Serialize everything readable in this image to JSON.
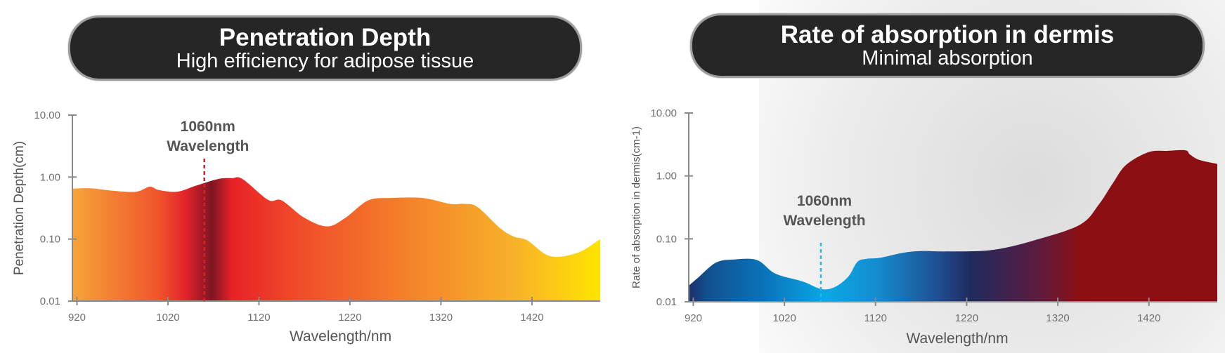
{
  "panels": [
    {
      "title": "Penetration Depth",
      "subtitle": "High efficiency for adipose tissue"
    },
    {
      "title": "Rate of absorption in dermis",
      "subtitle": "Minimal absorption"
    }
  ],
  "chart_data": [
    {
      "type": "area",
      "title": "Penetration Depth",
      "subtitle": "High efficiency for adipose tissue",
      "xlabel": "Wavelength/nm",
      "ylabel": "Penetration Depth(cm)",
      "yscale": "log",
      "xlim": [
        915,
        1495
      ],
      "ylim": [
        0.01,
        10
      ],
      "xticks": [
        920,
        1020,
        1120,
        1220,
        1320,
        1420
      ],
      "xtick_labels": [
        "920",
        "1020",
        "1120",
        "1220",
        "1320",
        "1420"
      ],
      "yticks": [
        0.01,
        0.1,
        1,
        10
      ],
      "ytick_labels": [
        "0.01",
        "0.10",
        "1.00",
        "10.00"
      ],
      "grid": false,
      "annotation": {
        "x": 1060,
        "line1": "1060nm",
        "line2": "Wavelength",
        "line_color": "#d42127"
      },
      "gradient": [
        {
          "x": 915,
          "color": "#f6a43a"
        },
        {
          "x": 1010,
          "color": "#f0542c"
        },
        {
          "x": 1040,
          "color": "#e3222a"
        },
        {
          "x": 1068,
          "color": "#7b1622"
        },
        {
          "x": 1090,
          "color": "#e82127"
        },
        {
          "x": 1160,
          "color": "#f04a2a"
        },
        {
          "x": 1280,
          "color": "#f4802a"
        },
        {
          "x": 1400,
          "color": "#f8b12a"
        },
        {
          "x": 1495,
          "color": "#ffe400"
        }
      ],
      "x": [
        915,
        935,
        960,
        985,
        1000,
        1010,
        1030,
        1050,
        1075,
        1090,
        1102,
        1130,
        1145,
        1170,
        1195,
        1215,
        1240,
        1265,
        1300,
        1330,
        1345,
        1360,
        1385,
        1400,
        1415,
        1440,
        1470,
        1495
      ],
      "y": [
        0.65,
        0.66,
        0.6,
        0.58,
        0.7,
        0.62,
        0.58,
        0.72,
        0.93,
        0.96,
        0.93,
        0.43,
        0.42,
        0.22,
        0.16,
        0.22,
        0.42,
        0.46,
        0.46,
        0.37,
        0.37,
        0.33,
        0.15,
        0.11,
        0.095,
        0.053,
        0.06,
        0.1
      ]
    },
    {
      "type": "area",
      "title": "Rate of absorption in dermis",
      "subtitle": "Minimal absorption",
      "xlabel": "Wavelength/nm",
      "ylabel": "Rate of absorption in dermis(cm-1)",
      "yscale": "log",
      "xlim": [
        915,
        1495
      ],
      "ylim": [
        0.01,
        10
      ],
      "xticks": [
        920,
        1020,
        1120,
        1220,
        1320,
        1420
      ],
      "xtick_labels": [
        "920",
        "1020",
        "1120",
        "1220",
        "1320",
        "1420"
      ],
      "yticks": [
        0.01,
        0.1,
        1,
        10
      ],
      "ytick_labels": [
        "0.01",
        "0.10",
        "1.00",
        "10.00"
      ],
      "grid": false,
      "annotation": {
        "x": 1060,
        "line1": "1060nm",
        "line2": "Wavelength",
        "line_color": "#2bb6e9"
      },
      "gradient": [
        {
          "x": 915,
          "color": "#1b2f6b"
        },
        {
          "x": 935,
          "color": "#12508f"
        },
        {
          "x": 1000,
          "color": "#0a75bb"
        },
        {
          "x": 1065,
          "color": "#0aa8e6"
        },
        {
          "x": 1120,
          "color": "#138ed0"
        },
        {
          "x": 1190,
          "color": "#1f4d90"
        },
        {
          "x": 1225,
          "color": "#1f2a5e"
        },
        {
          "x": 1300,
          "color": "#5e1b3e"
        },
        {
          "x": 1345,
          "color": "#8c0f14"
        },
        {
          "x": 1495,
          "color": "#8c0f14"
        }
      ],
      "x": [
        915,
        925,
        945,
        965,
        990,
        1010,
        1040,
        1060,
        1075,
        1090,
        1100,
        1110,
        1125,
        1150,
        1170,
        1200,
        1250,
        1300,
        1345,
        1365,
        1380,
        1395,
        1420,
        1440,
        1460,
        1465,
        1475,
        1495
      ],
      "y": [
        0.018,
        0.024,
        0.042,
        0.047,
        0.046,
        0.028,
        0.021,
        0.016,
        0.017,
        0.025,
        0.043,
        0.048,
        0.05,
        0.06,
        0.064,
        0.063,
        0.067,
        0.1,
        0.17,
        0.35,
        0.75,
        1.5,
        2.4,
        2.5,
        2.55,
        2.2,
        1.8,
        1.55
      ]
    }
  ]
}
